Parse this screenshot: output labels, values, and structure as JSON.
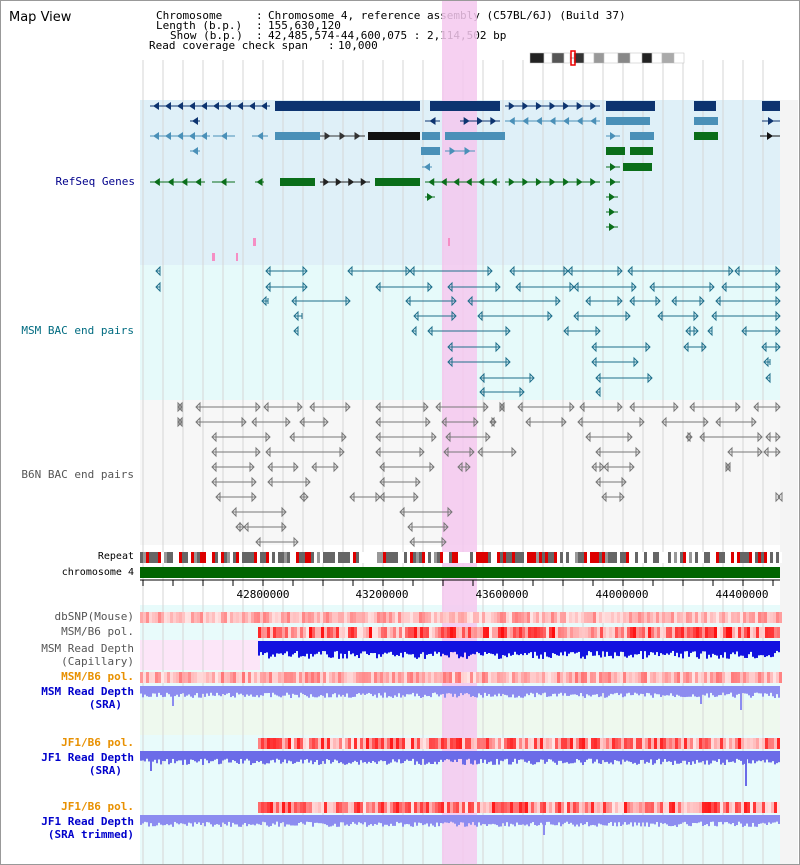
{
  "map": {
    "title": "Map View"
  },
  "header": {
    "chromosome_key": "Chromosome",
    "chromosome_val": "Chromosome 4, reference assembly (C57BL/6J) (Build 37)",
    "length_key": "Length (b.p.)",
    "length_val": "155,630,120",
    "show_key": "Show (b.p.)",
    "show_val": "42,485,574-44,600,075 : 2,114,502 bp",
    "coverage_key": "Read coverage check span",
    "coverage_val": "10,000"
  },
  "tracks": {
    "refseq": "RefSeq Genes",
    "msm_bac": "MSM BAC end pairs",
    "b6n_bac": "B6N BAC end pairs",
    "repeat": "Repeat",
    "chromosome": "chromosome 4",
    "dbsnp": "dbSNP(Mouse)",
    "msm_b6_pol_1": "MSM/B6 pol.",
    "msm_read_depth_cap_1": "MSM Read Depth",
    "msm_read_depth_cap_2": "(Capillary)",
    "msm_b6_pol_2": "MSM/B6 pol.",
    "msm_read_depth_sra_1": "MSM Read Depth",
    "msm_read_depth_sra_2": "(SRA)",
    "jf1_b6_pol_1": "JF1/B6 pol.",
    "jf1_read_depth_sra_1": "JF1 Read Depth",
    "jf1_read_depth_sra_2": "(SRA)",
    "jf1_b6_pol_2": "JF1/B6 pol.",
    "jf1_read_depth_trim_1": "JF1 Read Depth",
    "jf1_read_depth_trim_2": "(SRA trimmed)"
  },
  "axis": {
    "ticks": [
      "42800000",
      "43200000",
      "43600000",
      "44000000",
      "44400000"
    ]
  },
  "colors": {
    "refseq_label": "#00008b",
    "msm_bac_label": "#006b80",
    "b6n_bac_label": "#555555",
    "pol_label_orange": "#e89000",
    "read_depth_label": "#0000cc",
    "highlight": "#f4c8ee",
    "chromosome_bar": "#006400"
  }
}
